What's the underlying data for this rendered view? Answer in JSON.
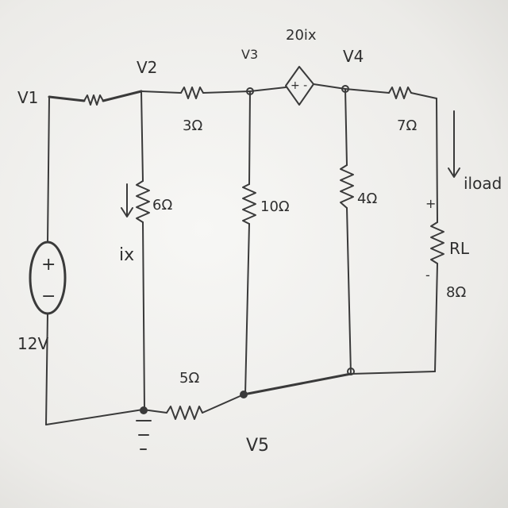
{
  "diagram": {
    "nodes": {
      "v1": "V1",
      "v2": "V2",
      "v3": "V3",
      "v4": "V4",
      "v5": "V5"
    },
    "source": {
      "value": "12V",
      "plus": "+",
      "minus": "−"
    },
    "dependent_source": {
      "label": "20ix",
      "polarity": "+ -"
    },
    "resistors": {
      "r_v2v3": "3Ω",
      "r_shunt_v2": "6Ω",
      "r_shunt_v3": "10Ω",
      "r_shunt_v4": "4Ω",
      "r_series_out": "7Ω",
      "r_bottom": "5Ω",
      "r_load_name": "RL",
      "r_load_value": "8Ω"
    },
    "currents": {
      "ix": "ix",
      "iload": "iload"
    },
    "load_polarity": {
      "plus": "+",
      "minus": "-"
    }
  }
}
